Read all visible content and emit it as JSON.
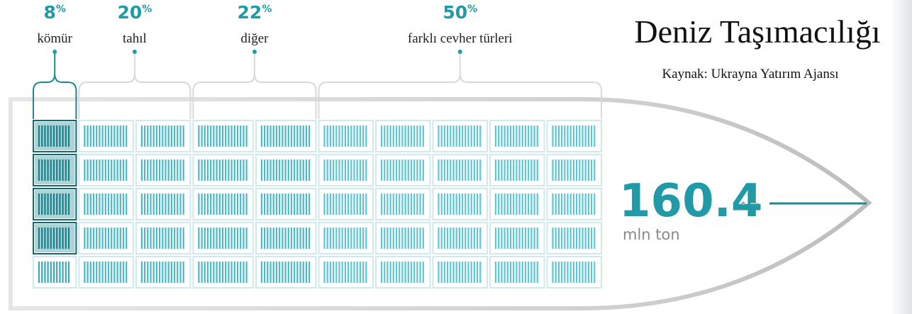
{
  "title": "Deniz Taşımacılığı",
  "source": "Kaynak: Ukrayna Yatırım Ajansı",
  "percent_sign": "%",
  "segments": [
    {
      "value": 8,
      "label": "kömür"
    },
    {
      "value": 20,
      "label": "tahıl"
    },
    {
      "value": 22,
      "label": "diğer"
    },
    {
      "value": 50,
      "label": "farklı cevher türleri"
    }
  ],
  "total": {
    "value": 160.4,
    "unit": "mln ton"
  }
}
